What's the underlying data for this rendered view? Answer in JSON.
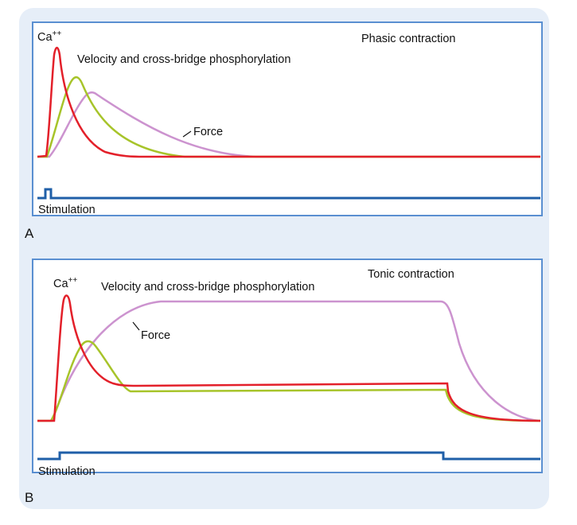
{
  "panels": [
    {
      "letter": "A",
      "title": "Phasic contraction",
      "labels": {
        "ca": "Ca",
        "ca_sup": "++",
        "velocity": "Velocity and cross-bridge phosphorylation",
        "force": "Force",
        "stimulation": "Stimulation"
      }
    },
    {
      "letter": "B",
      "title": "Tonic contraction",
      "labels": {
        "ca": "Ca",
        "ca_sup": "++",
        "velocity": "Velocity and cross-bridge phosphorylation",
        "force": "Force",
        "stimulation": "Stimulation"
      }
    }
  ],
  "colors": {
    "calcium": "#e3202a",
    "velocity": "#a7c42a",
    "force": "#cc93cf",
    "stimulation": "#1f5fa8",
    "frame": "#5a8fd1",
    "backdrop": "#e6eef8"
  }
}
